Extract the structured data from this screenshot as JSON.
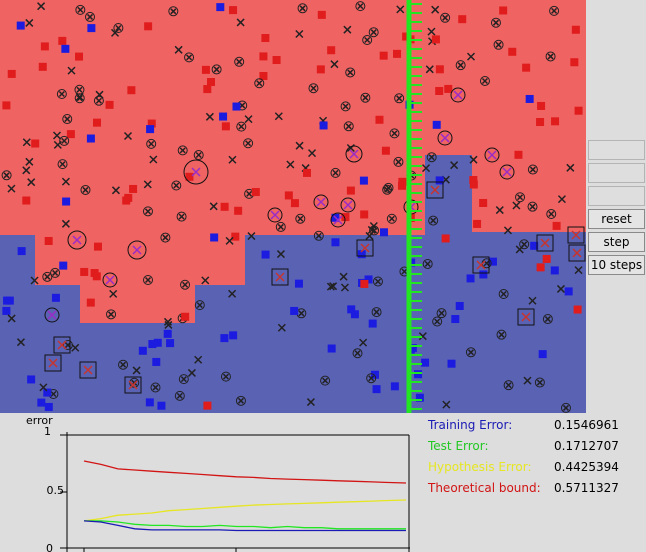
{
  "buttons": {
    "blank_1": "",
    "blank_2": "",
    "blank_3": "",
    "reset": "reset",
    "step": "step",
    "ten_steps": "10 steps"
  },
  "colors": {
    "positive_region": "#f06363",
    "negative_region": "#5a62b4",
    "positive_point": "#e01c1c",
    "negative_point": "#1c1ce0",
    "tree_split_line": "#22e622",
    "training_error": "#1a1ab4",
    "test_error": "#22e622",
    "hypothesis_error": "#e6e622",
    "theoretical_bound": "#d21414"
  },
  "stats": [
    {
      "label": "Training Error:",
      "value": "0.1546961",
      "color": "#1a1ab4"
    },
    {
      "label": "Test Error:",
      "value": "0.1712707",
      "color": "#22c822"
    },
    {
      "label": "Hypothesis Error:",
      "value": "0.4425394",
      "color": "#e6e622"
    },
    {
      "label": "Theoretical bound:",
      "value": "0.5711327",
      "color": "#d21414"
    }
  ],
  "chart_data": {
    "type": "line",
    "title": "",
    "ylabel": "error",
    "xlabel": "",
    "ylim": [
      0,
      1
    ],
    "yticks": [
      "1",
      "0.5",
      "0"
    ],
    "grid": false,
    "legend": "none",
    "x": [
      1,
      2,
      3,
      4,
      5,
      6,
      7,
      8,
      9,
      10,
      11,
      12,
      13,
      14,
      15,
      16,
      17,
      18,
      19,
      20
    ],
    "series": [
      {
        "values": [
          0.77,
          0.74,
          0.7,
          0.69,
          0.68,
          0.67,
          0.66,
          0.65,
          0.64,
          0.63,
          0.625,
          0.615,
          0.61,
          0.605,
          0.6,
          0.595,
          0.59,
          0.585,
          0.58,
          0.575
        ],
        "color": "#d21414"
      },
      {
        "values": [
          0.24,
          0.26,
          0.29,
          0.3,
          0.31,
          0.33,
          0.34,
          0.35,
          0.36,
          0.37,
          0.38,
          0.385,
          0.39,
          0.395,
          0.4,
          0.405,
          0.41,
          0.415,
          0.42,
          0.425
        ],
        "color": "#e6e622"
      },
      {
        "values": [
          0.24,
          0.24,
          0.23,
          0.21,
          0.2,
          0.2,
          0.19,
          0.19,
          0.2,
          0.19,
          0.19,
          0.18,
          0.19,
          0.18,
          0.18,
          0.17,
          0.17,
          0.17,
          0.17,
          0.17
        ],
        "color": "#22e622"
      },
      {
        "values": [
          0.24,
          0.23,
          0.2,
          0.17,
          0.16,
          0.16,
          0.16,
          0.16,
          0.16,
          0.155,
          0.155,
          0.155,
          0.155,
          0.155,
          0.155,
          0.155,
          0.155,
          0.155,
          0.155,
          0.155
        ],
        "color": "#1a1ab4"
      }
    ]
  }
}
